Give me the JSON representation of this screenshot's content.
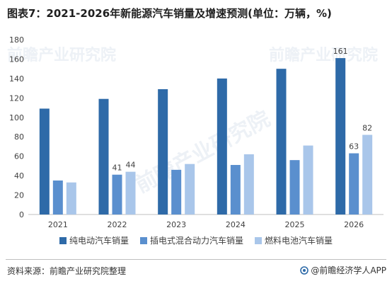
{
  "title": "图表7：2021-2026年新能源汽车销量及增速预测(单位：万辆，%)",
  "source": "资料来源：前瞻产业研究院整理",
  "brand": "@前瞻经济学人APP",
  "watermark": "前瞻产业研究院",
  "colors": {
    "series1": "#2e6aa8",
    "series2": "#5a8fce",
    "series3": "#a9c6ea",
    "axis": "#bfbfbf",
    "text": "#404040"
  },
  "chart_data": {
    "type": "bar",
    "title": "",
    "xlabel": "",
    "ylabel": "",
    "categories": [
      "2021",
      "2022",
      "2023",
      "2024",
      "2025",
      "2026"
    ],
    "ylim": [
      0,
      180
    ],
    "yticks": [
      0,
      20,
      40,
      60,
      80,
      100,
      120,
      140,
      160,
      180
    ],
    "grid": false,
    "legend_position": "bottom",
    "series": [
      {
        "name": "纯电动汽车销量",
        "values": [
          109,
          119,
          129,
          140,
          150,
          161
        ]
      },
      {
        "name": "插电式混合动力汽车销量",
        "values": [
          35,
          41,
          46,
          51,
          56,
          63
        ]
      },
      {
        "name": "燃料电池汽车销量",
        "values": [
          33,
          44,
          52,
          62,
          71,
          82
        ]
      }
    ],
    "data_labels": [
      {
        "series": 0,
        "index": 5,
        "text": "161"
      },
      {
        "series": 1,
        "index": 1,
        "text": "41"
      },
      {
        "series": 2,
        "index": 1,
        "text": "44"
      },
      {
        "series": 1,
        "index": 5,
        "text": "63"
      },
      {
        "series": 2,
        "index": 5,
        "text": "82"
      }
    ]
  }
}
